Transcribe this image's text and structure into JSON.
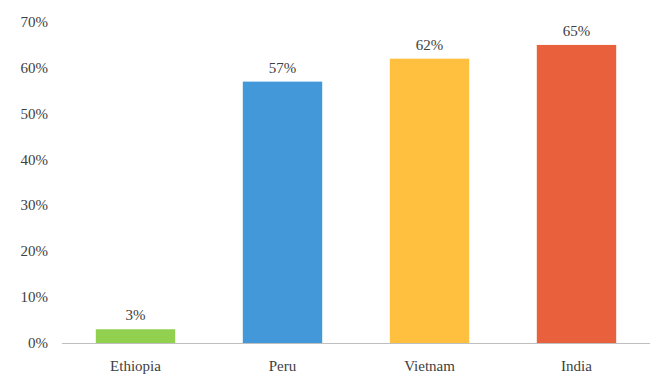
{
  "chart_data": {
    "type": "bar",
    "categories": [
      "Ethiopia",
      "Peru",
      "Vietnam",
      "India"
    ],
    "values": [
      3,
      57,
      62,
      65
    ],
    "value_labels": [
      "3%",
      "57%",
      "62%",
      "65%"
    ],
    "colors": [
      "#92d050",
      "#4298d9",
      "#ffbf3f",
      "#e8603c"
    ],
    "ylim": [
      0,
      70
    ],
    "yticks": [
      {
        "value": 0,
        "label": "0%"
      },
      {
        "value": 10,
        "label": "10%"
      },
      {
        "value": 20,
        "label": "20%"
      },
      {
        "value": 30,
        "label": "30%"
      },
      {
        "value": 40,
        "label": "40%"
      },
      {
        "value": 50,
        "label": "50%"
      },
      {
        "value": 60,
        "label": "60%"
      },
      {
        "value": 70,
        "label": "70%"
      }
    ],
    "grid": false,
    "data_labels": true
  }
}
